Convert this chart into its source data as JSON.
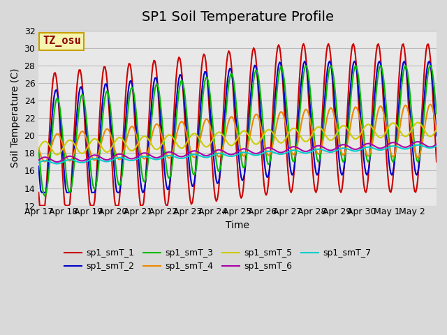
{
  "title": "SP1 Soil Temperature Profile",
  "xlabel": "Time",
  "ylabel": "Soil Temperature (C)",
  "ylim": [
    12,
    32
  ],
  "bg_color": "#d9d9d9",
  "plot_bg_color": "#e8e8e8",
  "annotation_text": "TZ_osu",
  "annotation_color": "#8b0000",
  "annotation_bg": "#f5f5b0",
  "annotation_border": "#c8a000",
  "series": [
    {
      "name": "sp1_smT_1",
      "color": "#cc0000",
      "linewidth": 1.5
    },
    {
      "name": "sp1_smT_2",
      "color": "#0000cc",
      "linewidth": 1.5
    },
    {
      "name": "sp1_smT_3",
      "color": "#00bb00",
      "linewidth": 1.5
    },
    {
      "name": "sp1_smT_4",
      "color": "#ee8800",
      "linewidth": 1.5
    },
    {
      "name": "sp1_smT_5",
      "color": "#cccc00",
      "linewidth": 1.5
    },
    {
      "name": "sp1_smT_6",
      "color": "#aa00aa",
      "linewidth": 1.5
    },
    {
      "name": "sp1_smT_7",
      "color": "#00cccc",
      "linewidth": 1.5
    }
  ],
  "xtick_labels": [
    "Apr 17",
    "Apr 18",
    "Apr 19",
    "Apr 20",
    "Apr 21",
    "Apr 22",
    "Apr 23",
    "Apr 24",
    "Apr 25",
    "Apr 26",
    "Apr 27",
    "Apr 28",
    "Apr 29",
    "Apr 30",
    "May 1",
    "May 2"
  ],
  "ytick_values": [
    12,
    14,
    16,
    18,
    20,
    22,
    24,
    26,
    28,
    30,
    32
  ],
  "grid_color": "#bbbbbb",
  "title_fontsize": 14,
  "axis_label_fontsize": 10,
  "tick_fontsize": 9
}
